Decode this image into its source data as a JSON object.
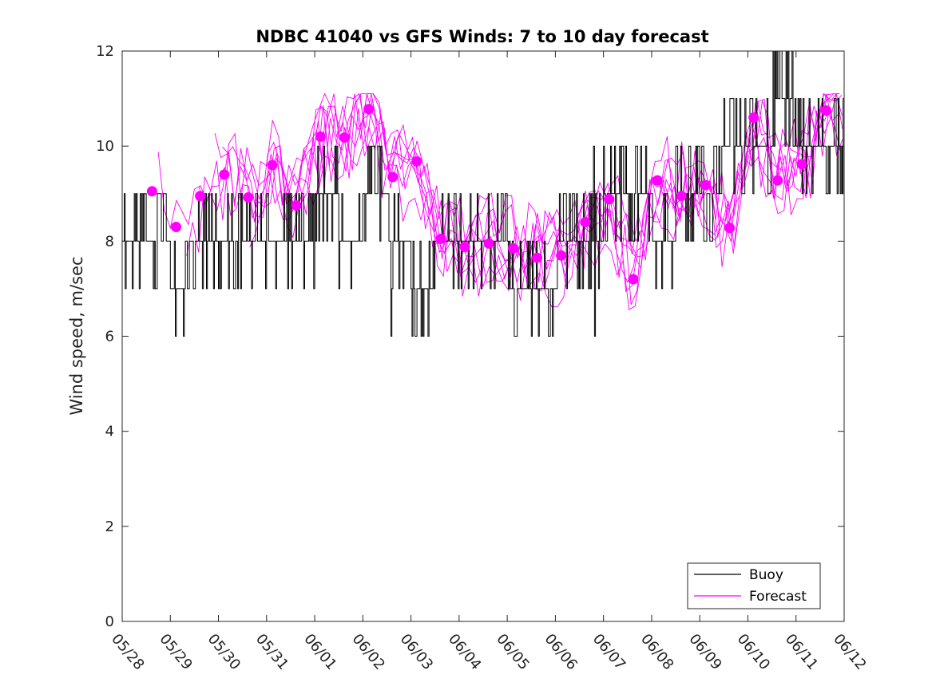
{
  "chart_data": {
    "type": "line",
    "title": "NDBC 41040 vs GFS Winds: 7 to 10 day forecast",
    "xlabel": "",
    "ylabel": "Wind speed, m/sec",
    "x_tick_labels": [
      "05/28",
      "05/29",
      "05/30",
      "05/31",
      "06/01",
      "06/02",
      "06/03",
      "06/04",
      "06/05",
      "06/06",
      "06/07",
      "06/08",
      "06/09",
      "06/10",
      "06/11",
      "06/12"
    ],
    "xlim_days": [
      0,
      15
    ],
    "ylim": [
      0,
      12
    ],
    "y_ticks": [
      0,
      2,
      4,
      6,
      8,
      10,
      12
    ],
    "grid": false,
    "legend_placement": "bottom-right",
    "legend": [
      {
        "name": "Buoy",
        "color": "#000000"
      },
      {
        "name": "Forecast",
        "color": "#ff00ff"
      }
    ],
    "buoy_series": {
      "name": "Buoy",
      "color": "#000000",
      "style": "step line, integer m/s readings",
      "day_offset": [
        0.0,
        0.5,
        1.0,
        1.5,
        2.0,
        2.5,
        3.0,
        3.5,
        4.0,
        4.5,
        5.0,
        5.5,
        6.0,
        6.5,
        7.0,
        7.5,
        8.0,
        8.5,
        9.0,
        9.5,
        10.0,
        10.5,
        11.0,
        11.5,
        12.0,
        12.5,
        13.0,
        13.5,
        14.0,
        14.5
      ],
      "base_speed": [
        8,
        8,
        7,
        8,
        8,
        8,
        8,
        8,
        9,
        8,
        9,
        8,
        7,
        8,
        8,
        8,
        7,
        7,
        8,
        8,
        9,
        9,
        8,
        9,
        9,
        10,
        10,
        11,
        10,
        10
      ]
    },
    "forecast_markers": {
      "name": "Forecast",
      "color": "#ff00ff",
      "points": [
        {
          "day": 0.62,
          "speed": 9.05
        },
        {
          "day": 1.12,
          "speed": 8.3
        },
        {
          "day": 1.62,
          "speed": 8.95
        },
        {
          "day": 2.12,
          "speed": 9.4
        },
        {
          "day": 2.62,
          "speed": 8.92
        },
        {
          "day": 3.12,
          "speed": 9.6
        },
        {
          "day": 3.62,
          "speed": 8.75
        },
        {
          "day": 4.12,
          "speed": 10.2
        },
        {
          "day": 4.62,
          "speed": 10.18
        },
        {
          "day": 5.12,
          "speed": 10.78
        },
        {
          "day": 5.62,
          "speed": 9.35
        },
        {
          "day": 6.12,
          "speed": 9.68
        },
        {
          "day": 6.62,
          "speed": 8.05
        },
        {
          "day": 7.12,
          "speed": 7.88
        },
        {
          "day": 7.62,
          "speed": 7.95
        },
        {
          "day": 8.12,
          "speed": 7.85
        },
        {
          "day": 8.62,
          "speed": 7.65
        },
        {
          "day": 9.12,
          "speed": 7.7
        },
        {
          "day": 9.62,
          "speed": 8.4
        },
        {
          "day": 10.12,
          "speed": 8.88
        },
        {
          "day": 10.62,
          "speed": 7.2
        },
        {
          "day": 11.12,
          "speed": 9.28
        },
        {
          "day": 11.62,
          "speed": 8.95
        },
        {
          "day": 12.12,
          "speed": 9.18
        },
        {
          "day": 12.62,
          "speed": 8.28
        },
        {
          "day": 13.12,
          "speed": 10.6
        },
        {
          "day": 13.62,
          "speed": 9.28
        },
        {
          "day": 14.12,
          "speed": 9.62
        },
        {
          "day": 14.62,
          "speed": 10.75
        }
      ]
    },
    "forecast_ensemble_lines": 8
  }
}
